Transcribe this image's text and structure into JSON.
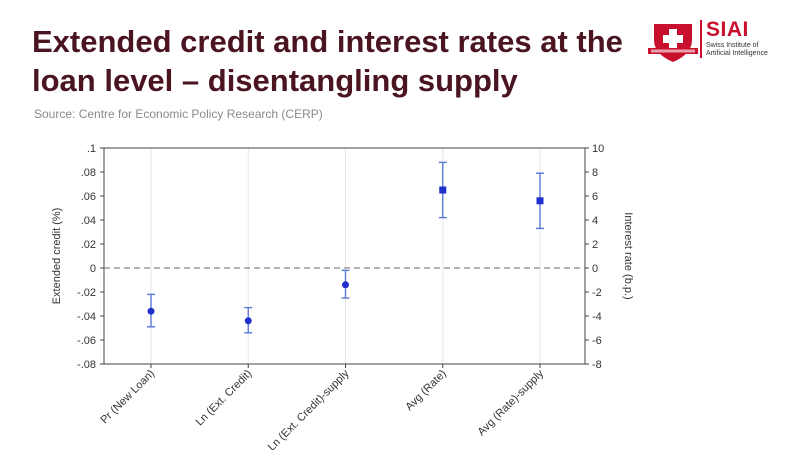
{
  "header": {
    "title_line1": "Extended credit and interest rates at the",
    "title_line2": "loan level – disentangling supply",
    "source": "Source: Centre for Economic Policy Research (CERP)"
  },
  "logo": {
    "name": "SIAI",
    "sub_line1": "Swiss Institute of",
    "sub_line2": "Artificial Intelligence",
    "brand_color": "#c8102e"
  },
  "chart_data": {
    "type": "scatter",
    "subtype": "coefficient-plot-with-error-bars",
    "title": "",
    "categories": [
      "Pr (New Loan)",
      "Ln (Ext. Credit)",
      "Ln (Ext. Credit)-supply",
      "Avg (Rate)",
      "Avg (Rate)-supply"
    ],
    "points": [
      {
        "category": "Pr (New Loan)",
        "axis": "left",
        "value": -0.036,
        "ci_low": -0.049,
        "ci_high": -0.022
      },
      {
        "category": "Ln (Ext. Credit)",
        "axis": "left",
        "value": -0.044,
        "ci_low": -0.054,
        "ci_high": -0.033
      },
      {
        "category": "Ln (Ext. Credit)-supply",
        "axis": "left",
        "value": -0.014,
        "ci_low": -0.025,
        "ci_high": -0.002
      },
      {
        "category": "Avg (Rate)",
        "axis": "right",
        "value": 6.5,
        "ci_low": 4.2,
        "ci_high": 8.8
      },
      {
        "category": "Avg (Rate)-supply",
        "axis": "right",
        "value": 5.6,
        "ci_low": 3.3,
        "ci_high": 7.9
      }
    ],
    "y_left": {
      "label": "Extended credit (%)",
      "ylim": [
        -0.08,
        0.1
      ],
      "ticks": [
        ".1",
        ".08",
        ".06",
        ".04",
        ".02",
        "0",
        "-.02",
        "-.04",
        "-.06",
        "-.08"
      ],
      "tick_values": [
        0.1,
        0.08,
        0.06,
        0.04,
        0.02,
        0,
        -0.02,
        -0.04,
        -0.06,
        -0.08
      ]
    },
    "y_right": {
      "label": "Interest rate (b.p.)",
      "ylim": [
        -8,
        10
      ],
      "ticks": [
        "10",
        "8",
        "6",
        "4",
        "2",
        "0",
        "-2",
        "-4",
        "-6",
        "-8"
      ],
      "tick_values": [
        10,
        8,
        6,
        4,
        2,
        0,
        -2,
        -4,
        -6,
        -8
      ]
    },
    "zero_line": "dashed",
    "grid": "vertical",
    "point_color": "#1f2fcc",
    "errorbar_color": "#5a78d6"
  }
}
